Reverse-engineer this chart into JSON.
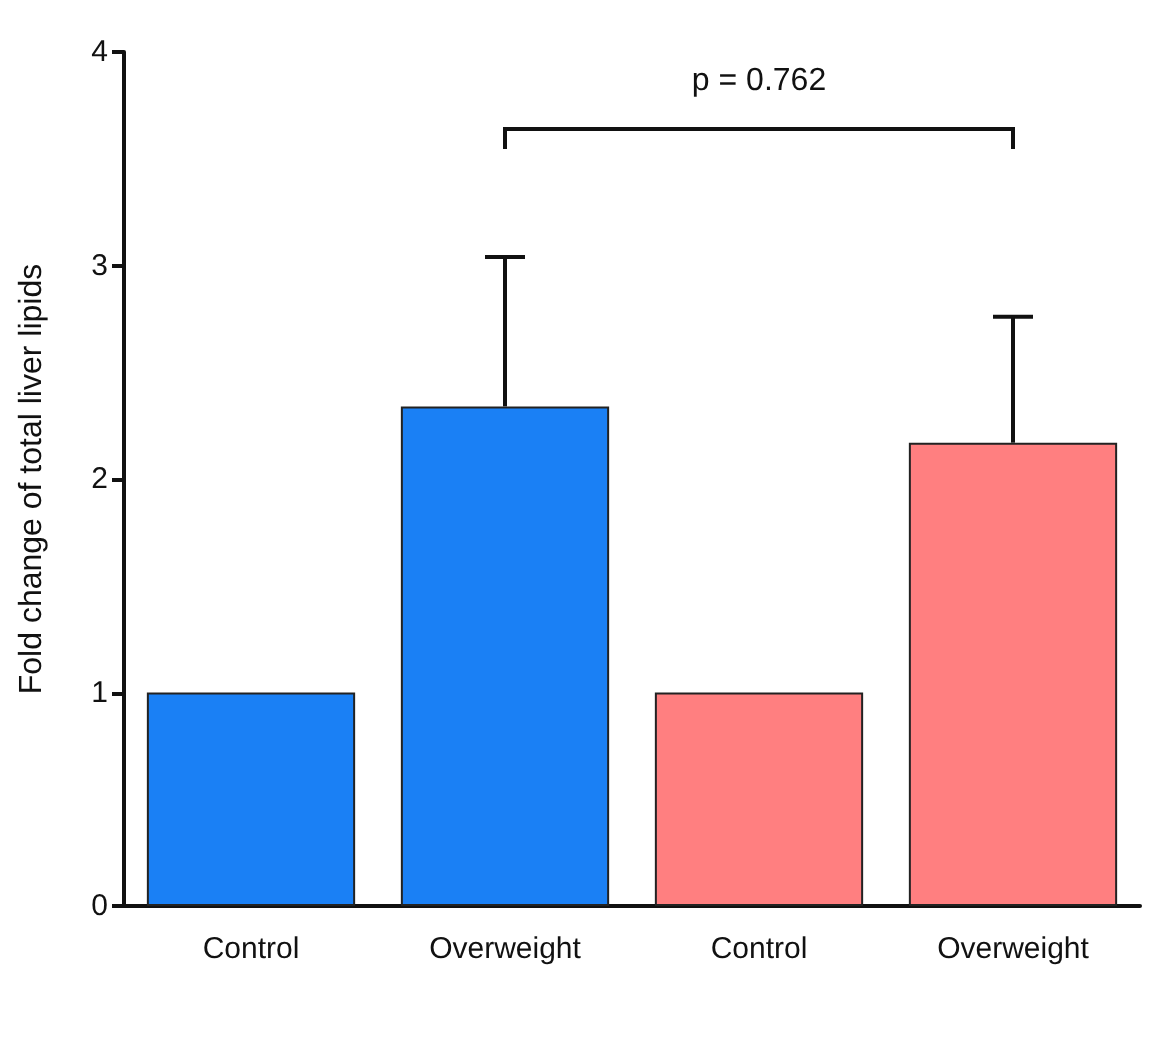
{
  "chart_data": {
    "type": "bar",
    "ylabel": "Fold change of total liver lipids",
    "categories": [
      "Control",
      "Overweight",
      "Control",
      "Overweight"
    ],
    "values": [
      1,
      2.34,
      1,
      2.17
    ],
    "colors": [
      "#1a80f5",
      "#1a80f5",
      "#ff7f80",
      "#ff7f80"
    ],
    "errors": [
      null,
      [
        2.34,
        3.04
      ],
      null,
      [
        2.17,
        2.76
      ]
    ],
    "ylim": [
      0,
      4
    ],
    "yticks": [
      0,
      1,
      2,
      3,
      4
    ],
    "grid": false,
    "annotations": [
      "p = 0.762"
    ]
  }
}
